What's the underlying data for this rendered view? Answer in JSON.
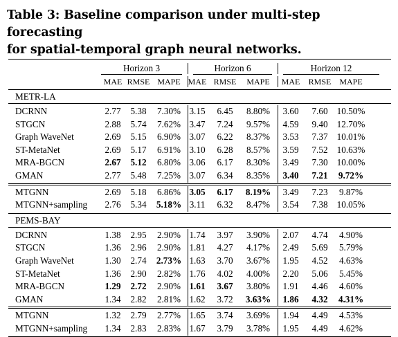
{
  "caption": {
    "line1": "Table 3: Baseline comparison under multi-step forecasting",
    "line2": "for spatial-temporal graph neural networks."
  },
  "horizons": [
    "Horizon 3",
    "Horizon 6",
    "Horizon 12"
  ],
  "metrics": [
    "MAE",
    "RMSE",
    "MAPE",
    "MAE",
    "RMSE",
    "MAPE",
    "MAE",
    "RMSE",
    "MAPE"
  ],
  "sections": [
    {
      "name": "METR-LA",
      "rows": [
        {
          "model": "DCRNN",
          "values": [
            "2.77",
            "5.38",
            "7.30%",
            "3.15",
            "6.45",
            "8.80%",
            "3.60",
            "7.60",
            "10.50%"
          ],
          "bold": []
        },
        {
          "model": "STGCN",
          "values": [
            "2.88",
            "5.74",
            "7.62%",
            "3.47",
            "7.24",
            "9.57%",
            "4.59",
            "9.40",
            "12.70%"
          ],
          "bold": []
        },
        {
          "model": "Graph WaveNet",
          "values": [
            "2.69",
            "5.15",
            "6.90%",
            "3.07",
            "6.22",
            "8.37%",
            "3.53",
            "7.37",
            "10.01%"
          ],
          "bold": []
        },
        {
          "model": "ST-MetaNet",
          "values": [
            "2.69",
            "5.17",
            "6.91%",
            "3.10",
            "6.28",
            "8.57%",
            "3.59",
            "7.52",
            "10.63%"
          ],
          "bold": []
        },
        {
          "model": "MRA-BGCN",
          "values": [
            "2.67",
            "5.12",
            "6.80%",
            "3.06",
            "6.17",
            "8.30%",
            "3.49",
            "7.30",
            "10.00%"
          ],
          "bold": [
            0,
            1
          ]
        },
        {
          "model": "GMAN",
          "values": [
            "2.77",
            "5.48",
            "7.25%",
            "3.07",
            "6.34",
            "8.35%",
            "3.40",
            "7.21",
            "9.72%"
          ],
          "bold": [
            6,
            7,
            8
          ]
        },
        {
          "model": "MTGNN",
          "values": [
            "2.69",
            "5.18",
            "6.86%",
            "3.05",
            "6.17",
            "8.19%",
            "3.49",
            "7.23",
            "9.87%"
          ],
          "bold": [
            3,
            4,
            5
          ]
        },
        {
          "model": "MTGNN+sampling",
          "values": [
            "2.76",
            "5.34",
            "5.18%",
            "3.11",
            "6.32",
            "8.47%",
            "3.54",
            "7.38",
            "10.05%"
          ],
          "bold": [
            2
          ]
        }
      ]
    },
    {
      "name": "PEMS-BAY",
      "rows": [
        {
          "model": "DCRNN",
          "values": [
            "1.38",
            "2.95",
            "2.90%",
            "1.74",
            "3.97",
            "3.90%",
            "2.07",
            "4.74",
            "4.90%"
          ],
          "bold": []
        },
        {
          "model": "STGCN",
          "values": [
            "1.36",
            "2.96",
            "2.90%",
            "1.81",
            "4.27",
            "4.17%",
            "2.49",
            "5.69",
            "5.79%"
          ],
          "bold": []
        },
        {
          "model": "Graph WaveNet",
          "values": [
            "1.30",
            "2.74",
            "2.73%",
            "1.63",
            "3.70",
            "3.67%",
            "1.95",
            "4.52",
            "4.63%"
          ],
          "bold": [
            2
          ]
        },
        {
          "model": "ST-MetaNet",
          "values": [
            "1.36",
            "2.90",
            "2.82%",
            "1.76",
            "4.02",
            "4.00%",
            "2.20",
            "5.06",
            "5.45%"
          ],
          "bold": []
        },
        {
          "model": "MRA-BGCN",
          "values": [
            "1.29",
            "2.72",
            "2.90%",
            "1.61",
            "3.67",
            "3.80%",
            "1.91",
            "4.46",
            "4.60%"
          ],
          "bold": [
            0,
            1,
            3,
            4
          ]
        },
        {
          "model": "GMAN",
          "values": [
            "1.34",
            "2.82",
            "2.81%",
            "1.62",
            "3.72",
            "3.63%",
            "1.86",
            "4.32",
            "4.31%"
          ],
          "bold": [
            5,
            6,
            7,
            8
          ]
        },
        {
          "model": "MTGNN",
          "values": [
            "1.32",
            "2.79",
            "2.77%",
            "1.65",
            "3.74",
            "3.69%",
            "1.94",
            "4.49",
            "4.53%"
          ],
          "bold": []
        },
        {
          "model": "MTGNN+sampling",
          "values": [
            "1.34",
            "2.83",
            "2.83%",
            "1.67",
            "3.79",
            "3.78%",
            "1.95",
            "4.49",
            "4.62%"
          ],
          "bold": []
        }
      ]
    }
  ]
}
